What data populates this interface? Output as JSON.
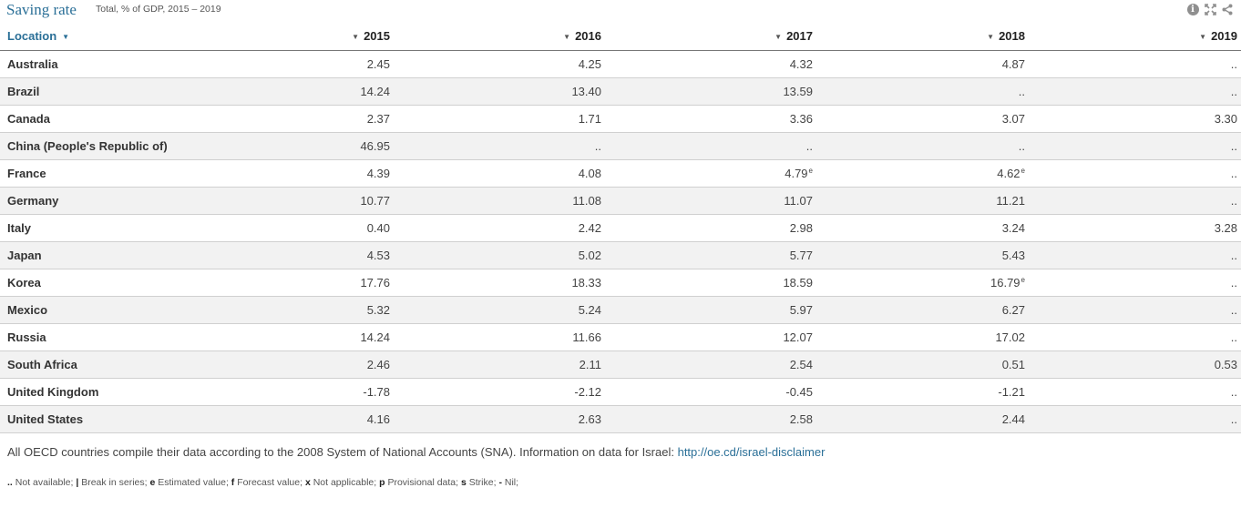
{
  "header": {
    "title": "Saving rate",
    "subtitle": "Total, % of GDP, 2015 – 2019"
  },
  "tools": [
    "info-icon",
    "expand-icon",
    "share-icon"
  ],
  "table": {
    "location_header": "Location",
    "years": [
      "2015",
      "2016",
      "2017",
      "2018",
      "2019"
    ],
    "rows": [
      {
        "country": "Australia",
        "values": [
          "2.45",
          "4.25",
          "4.32",
          "4.87",
          ".."
        ]
      },
      {
        "country": "Brazil",
        "values": [
          "14.24",
          "13.40",
          "13.59",
          "..",
          ".."
        ]
      },
      {
        "country": "Canada",
        "values": [
          "2.37",
          "1.71",
          "3.36",
          "3.07",
          "3.30"
        ]
      },
      {
        "country": "China (People's Republic of)",
        "values": [
          "46.95",
          "..",
          "..",
          "..",
          ".."
        ]
      },
      {
        "country": "France",
        "values": [
          "4.39",
          "4.08",
          "4.79",
          "4.62",
          ".."
        ],
        "flags": [
          "",
          "",
          "e",
          "e",
          ""
        ]
      },
      {
        "country": "Germany",
        "values": [
          "10.77",
          "11.08",
          "11.07",
          "11.21",
          ".."
        ]
      },
      {
        "country": "Italy",
        "values": [
          "0.40",
          "2.42",
          "2.98",
          "3.24",
          "3.28"
        ]
      },
      {
        "country": "Japan",
        "values": [
          "4.53",
          "5.02",
          "5.77",
          "5.43",
          ".."
        ]
      },
      {
        "country": "Korea",
        "values": [
          "17.76",
          "18.33",
          "18.59",
          "16.79",
          ".."
        ],
        "flags": [
          "",
          "",
          "",
          "e",
          ""
        ]
      },
      {
        "country": "Mexico",
        "values": [
          "5.32",
          "5.24",
          "5.97",
          "6.27",
          ".."
        ]
      },
      {
        "country": "Russia",
        "values": [
          "14.24",
          "11.66",
          "12.07",
          "17.02",
          ".."
        ]
      },
      {
        "country": "South Africa",
        "values": [
          "2.46",
          "2.11",
          "2.54",
          "0.51",
          "0.53"
        ]
      },
      {
        "country": "United Kingdom",
        "values": [
          "-1.78",
          "-2.12",
          "-0.45",
          "-1.21",
          ".."
        ]
      },
      {
        "country": "United States",
        "values": [
          "4.16",
          "2.63",
          "2.58",
          "2.44",
          ".."
        ]
      }
    ]
  },
  "footer": {
    "note": "All OECD countries compile their data according to the 2008 System of National Accounts (SNA). Information on data for Israel: ",
    "link": "http://oe.cd/israel-disclaimer",
    "legend": [
      {
        "symbol": "..",
        "text": "Not available;"
      },
      {
        "symbol": "|",
        "text": "Break in series;"
      },
      {
        "symbol": "e",
        "text": "Estimated value;"
      },
      {
        "symbol": "f",
        "text": "Forecast value;"
      },
      {
        "symbol": "x",
        "text": "Not applicable;"
      },
      {
        "symbol": "p",
        "text": "Provisional data;"
      },
      {
        "symbol": "s",
        "text": "Strike;"
      },
      {
        "symbol": "-",
        "text": "Nil;"
      }
    ]
  },
  "colors": {
    "accent": "#2a6f97",
    "row_alt": "#f2f2f2",
    "icon_gray": "#8f8f8f"
  }
}
